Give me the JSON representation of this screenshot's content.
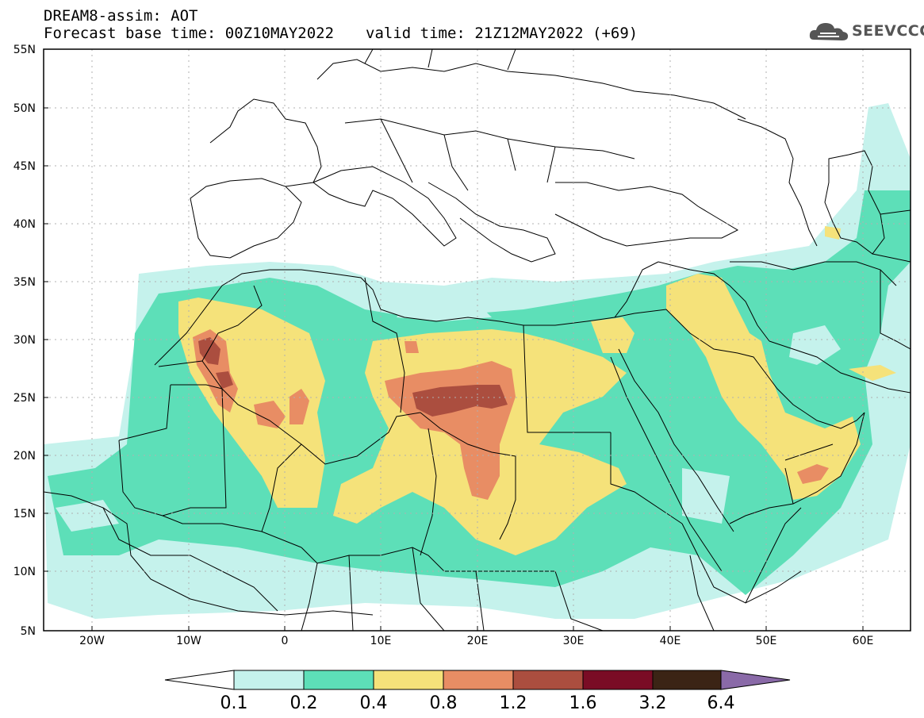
{
  "header": {
    "line1": "DREAM8-assim: AOT",
    "base_time": "Forecast base time: 00Z10MAY2022",
    "valid_time": "valid time: 21Z12MAY2022 (+69)"
  },
  "logo": {
    "text": "SEEVCCC",
    "icon": "cloud-icon"
  },
  "map": {
    "lat_labels": [
      "55N",
      "50N",
      "45N",
      "40N",
      "35N",
      "30N",
      "25N",
      "20N",
      "15N",
      "10N",
      "5N"
    ],
    "lon_labels": [
      "20W",
      "10W",
      "0",
      "10E",
      "20E",
      "30E",
      "40E",
      "50E",
      "60E"
    ],
    "grid": true
  },
  "colorbar": {
    "labels": [
      "0.1",
      "0.2",
      "0.4",
      "0.8",
      "1.2",
      "1.6",
      "3.2",
      "6.4"
    ],
    "colors": [
      "#ffffff",
      "#c5f2ec",
      "#5ddfb8",
      "#f5e27a",
      "#e88d64",
      "#ab4e3f",
      "#7a0c25",
      "#3b2415",
      "#8a6aa8"
    ]
  }
}
